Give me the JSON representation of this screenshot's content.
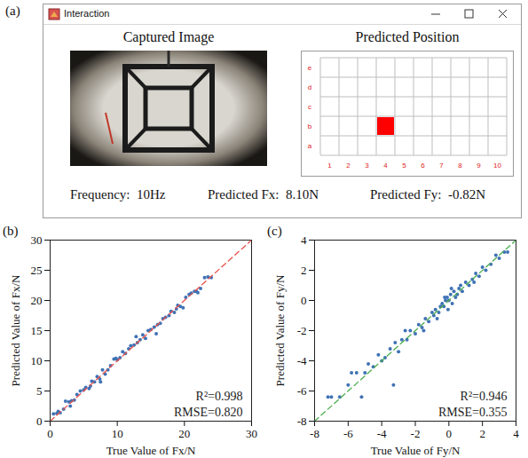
{
  "interface": {
    "panel": "(a)",
    "window_title": "Interaction",
    "image_title": "Captured Image",
    "position_title": "Predicted Position",
    "position_grid": {
      "columns": [
        "1",
        "2",
        "3",
        "4",
        "5",
        "6",
        "7",
        "8",
        "9",
        "10"
      ],
      "rows": [
        "a",
        "b",
        "c",
        "d",
        "e"
      ],
      "selected": {
        "column": "4",
        "row": "b"
      }
    },
    "readouts": [
      "Frequency:  10Hz",
      "Predicted Fx:  8.10N",
      "Predicted Fy:  -0.82N"
    ]
  },
  "chart_data": [
    {
      "type": "scatter",
      "panel": "(b)",
      "x_label": "True Value of Fx/N",
      "y_label": "Predicted Value of Fx/N",
      "xlim": [
        0,
        30
      ],
      "ylim": [
        0,
        30
      ],
      "xticks": [
        0,
        10,
        20,
        30
      ],
      "yticks": [
        0,
        5,
        10,
        15,
        20,
        25,
        30
      ],
      "annotations": [
        "R²=0.998",
        "RMSE=0.820"
      ],
      "series": [
        {
          "type": "scatter",
          "color": "#3f72b5",
          "marker": "circle",
          "x": [
            0.5,
            1,
            1.5,
            2,
            2.3,
            2.8,
            3.2,
            3.6,
            4,
            4.5,
            5,
            5.3,
            5.8,
            6.2,
            6.6,
            7,
            7.4,
            7.8,
            8.2,
            8.6,
            9,
            9.5,
            10,
            10.4,
            10.8,
            11.2,
            11.7,
            12,
            12.5,
            13,
            13.4,
            13.8,
            14.2,
            14.6,
            15,
            15.5,
            16,
            16.4,
            16.8,
            17.2,
            17.7,
            18,
            18.5,
            19,
            19.4,
            19.8,
            20.2,
            20.7,
            21,
            21.5,
            22,
            22.4,
            23,
            23.5,
            24,
            1.2,
            3,
            6,
            9.8,
            12.8,
            15.8,
            18.8,
            21.8,
            7.5
          ],
          "values": [
            1.2,
            1.3,
            1.4,
            2.0,
            3.3,
            3.2,
            3.4,
            3.5,
            4.4,
            5.0,
            5.2,
            5.6,
            5.4,
            6.6,
            6.5,
            7.4,
            7.0,
            8.5,
            7.8,
            8.5,
            9.2,
            10.3,
            10.2,
            10.5,
            11.5,
            11.2,
            12.0,
            12.5,
            12.6,
            13.0,
            13.5,
            14.3,
            13.7,
            15.0,
            15.2,
            15.6,
            16.0,
            16.2,
            17.0,
            17.2,
            17.5,
            18.2,
            18.0,
            19.2,
            19.0,
            18.8,
            20.5,
            21.0,
            21.2,
            21.5,
            21.3,
            22.0,
            23.8,
            23.9,
            23.8,
            1.6,
            2.5,
            5.8,
            10.4,
            14.0,
            14.5,
            18.6,
            21.5,
            6.5
          ]
        },
        {
          "type": "line",
          "color": "#e8504a",
          "line_style": "dashed",
          "x": [
            0,
            30
          ],
          "values": [
            0,
            30
          ]
        }
      ]
    },
    {
      "type": "scatter",
      "panel": "(c)",
      "x_label": "True Value of Fy/N",
      "y_label": "Predicted Value of Fy/N",
      "xlim": [
        -8,
        4
      ],
      "ylim": [
        -8,
        4
      ],
      "xticks": [
        -8,
        -6,
        -4,
        -2,
        0,
        2,
        4
      ],
      "yticks": [
        -8,
        -6,
        -4,
        -2,
        0,
        2,
        4
      ],
      "annotations": [
        "R²=0.946",
        "RMSE=0.355"
      ],
      "series": [
        {
          "type": "scatter",
          "color": "#3f72b5",
          "marker": "circle",
          "x": [
            -7.2,
            -7,
            -6.5,
            -6,
            -5.8,
            -5.5,
            -5,
            -4.8,
            -4.5,
            -4.2,
            -4,
            -3.8,
            -3.5,
            -3.2,
            -3,
            -2.8,
            -2.5,
            -2.3,
            -2,
            -1.8,
            -1.6,
            -1.4,
            -1.2,
            -1,
            -0.9,
            -0.8,
            -0.6,
            -0.5,
            -0.4,
            -0.3,
            -0.2,
            -0.1,
            0,
            0.1,
            0.2,
            0.3,
            0.4,
            0.5,
            0.6,
            0.8,
            1,
            1.2,
            1.4,
            1.6,
            1.8,
            2,
            2.2,
            2.5,
            2.8,
            3,
            3.3,
            3.5,
            -3.3,
            -2.6,
            -1.5,
            -0.7,
            0.15,
            -0.05,
            0.7,
            1.5,
            -5.2,
            -0.25
          ],
          "values": [
            -6.4,
            -6.4,
            -6.4,
            -5.6,
            -4.8,
            -4.8,
            -4.8,
            -4.2,
            -4.4,
            -3.6,
            -4.0,
            -3.8,
            -3.2,
            -2.8,
            -3.4,
            -2.6,
            -2.6,
            -2.0,
            -2.2,
            -1.6,
            -1.8,
            -1.2,
            -1.4,
            -0.8,
            -1.0,
            -0.6,
            -0.8,
            -0.4,
            -0.2,
            -0.4,
            0.0,
            0.2,
            0.0,
            0.4,
            -0.2,
            0.6,
            0.2,
            0.4,
            0.8,
            0.6,
            1.2,
            1.0,
            1.4,
            1.8,
            1.6,
            2.2,
            2.0,
            2.4,
            3.0,
            2.8,
            3.2,
            3.2,
            -5.6,
            -2.0,
            -2.0,
            -1.2,
            0.8,
            -0.6,
            1.0,
            1.2,
            -6.4,
            0.2
          ]
        },
        {
          "type": "line",
          "color": "#4cae4f",
          "line_style": "dashed",
          "x": [
            -8,
            4
          ],
          "values": [
            -8,
            4
          ]
        }
      ]
    }
  ]
}
